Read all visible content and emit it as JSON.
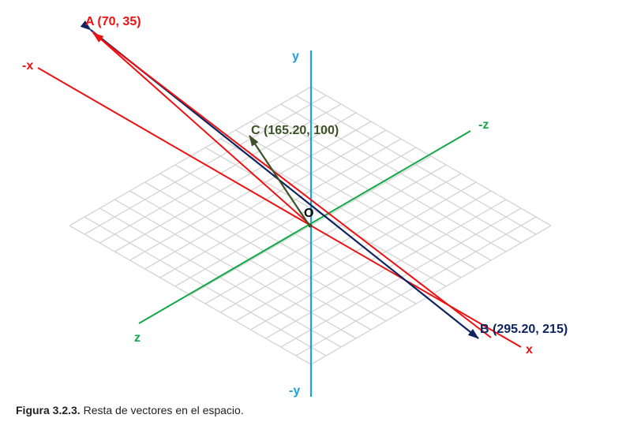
{
  "axes": {
    "x_pos": "x",
    "x_neg": "-x",
    "y_pos": "y",
    "y_neg": "-y",
    "z_pos": "z",
    "z_neg": "-z"
  },
  "origin_label": "O",
  "points": {
    "A": "A (70, 35)",
    "B": "B (295.20, 215)",
    "C": "C (165.20, 100)"
  },
  "caption": {
    "figure": "Figura 3.2.3.",
    "text": " Resta de vectores en el espacio."
  },
  "colors": {
    "x_axis": "#ee1111",
    "y_axis": "#1aa3dd",
    "z_axis": "#12a84a",
    "vector_blue": "#0d2460",
    "vector_red": "#ee1111",
    "vector_green": "#3d5226",
    "grid": "#d4d4d4",
    "label_A": "#ee1111",
    "label_B": "#0d2460",
    "label_C": "#3d5226"
  }
}
